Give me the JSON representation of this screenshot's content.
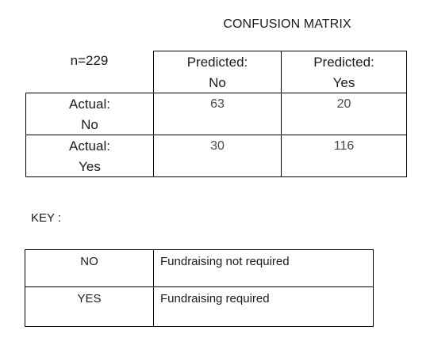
{
  "title": "CONFUSION MATRIX",
  "matrix": {
    "n_label": "n=229",
    "col_headers": [
      {
        "line1": "Predicted:",
        "line2": "No"
      },
      {
        "line1": "Predicted:",
        "line2": "Yes"
      }
    ],
    "row_headers": [
      {
        "line1": "Actual:",
        "line2": "No"
      },
      {
        "line1": "Actual:",
        "line2": "Yes"
      }
    ],
    "values": [
      [
        "63",
        "20"
      ],
      [
        "30",
        "116"
      ]
    ]
  },
  "key": {
    "label": "KEY :",
    "rows": [
      {
        "code": "NO",
        "meaning": "Fundraising not required"
      },
      {
        "code": "YES",
        "meaning": "Fundraising required"
      }
    ]
  }
}
